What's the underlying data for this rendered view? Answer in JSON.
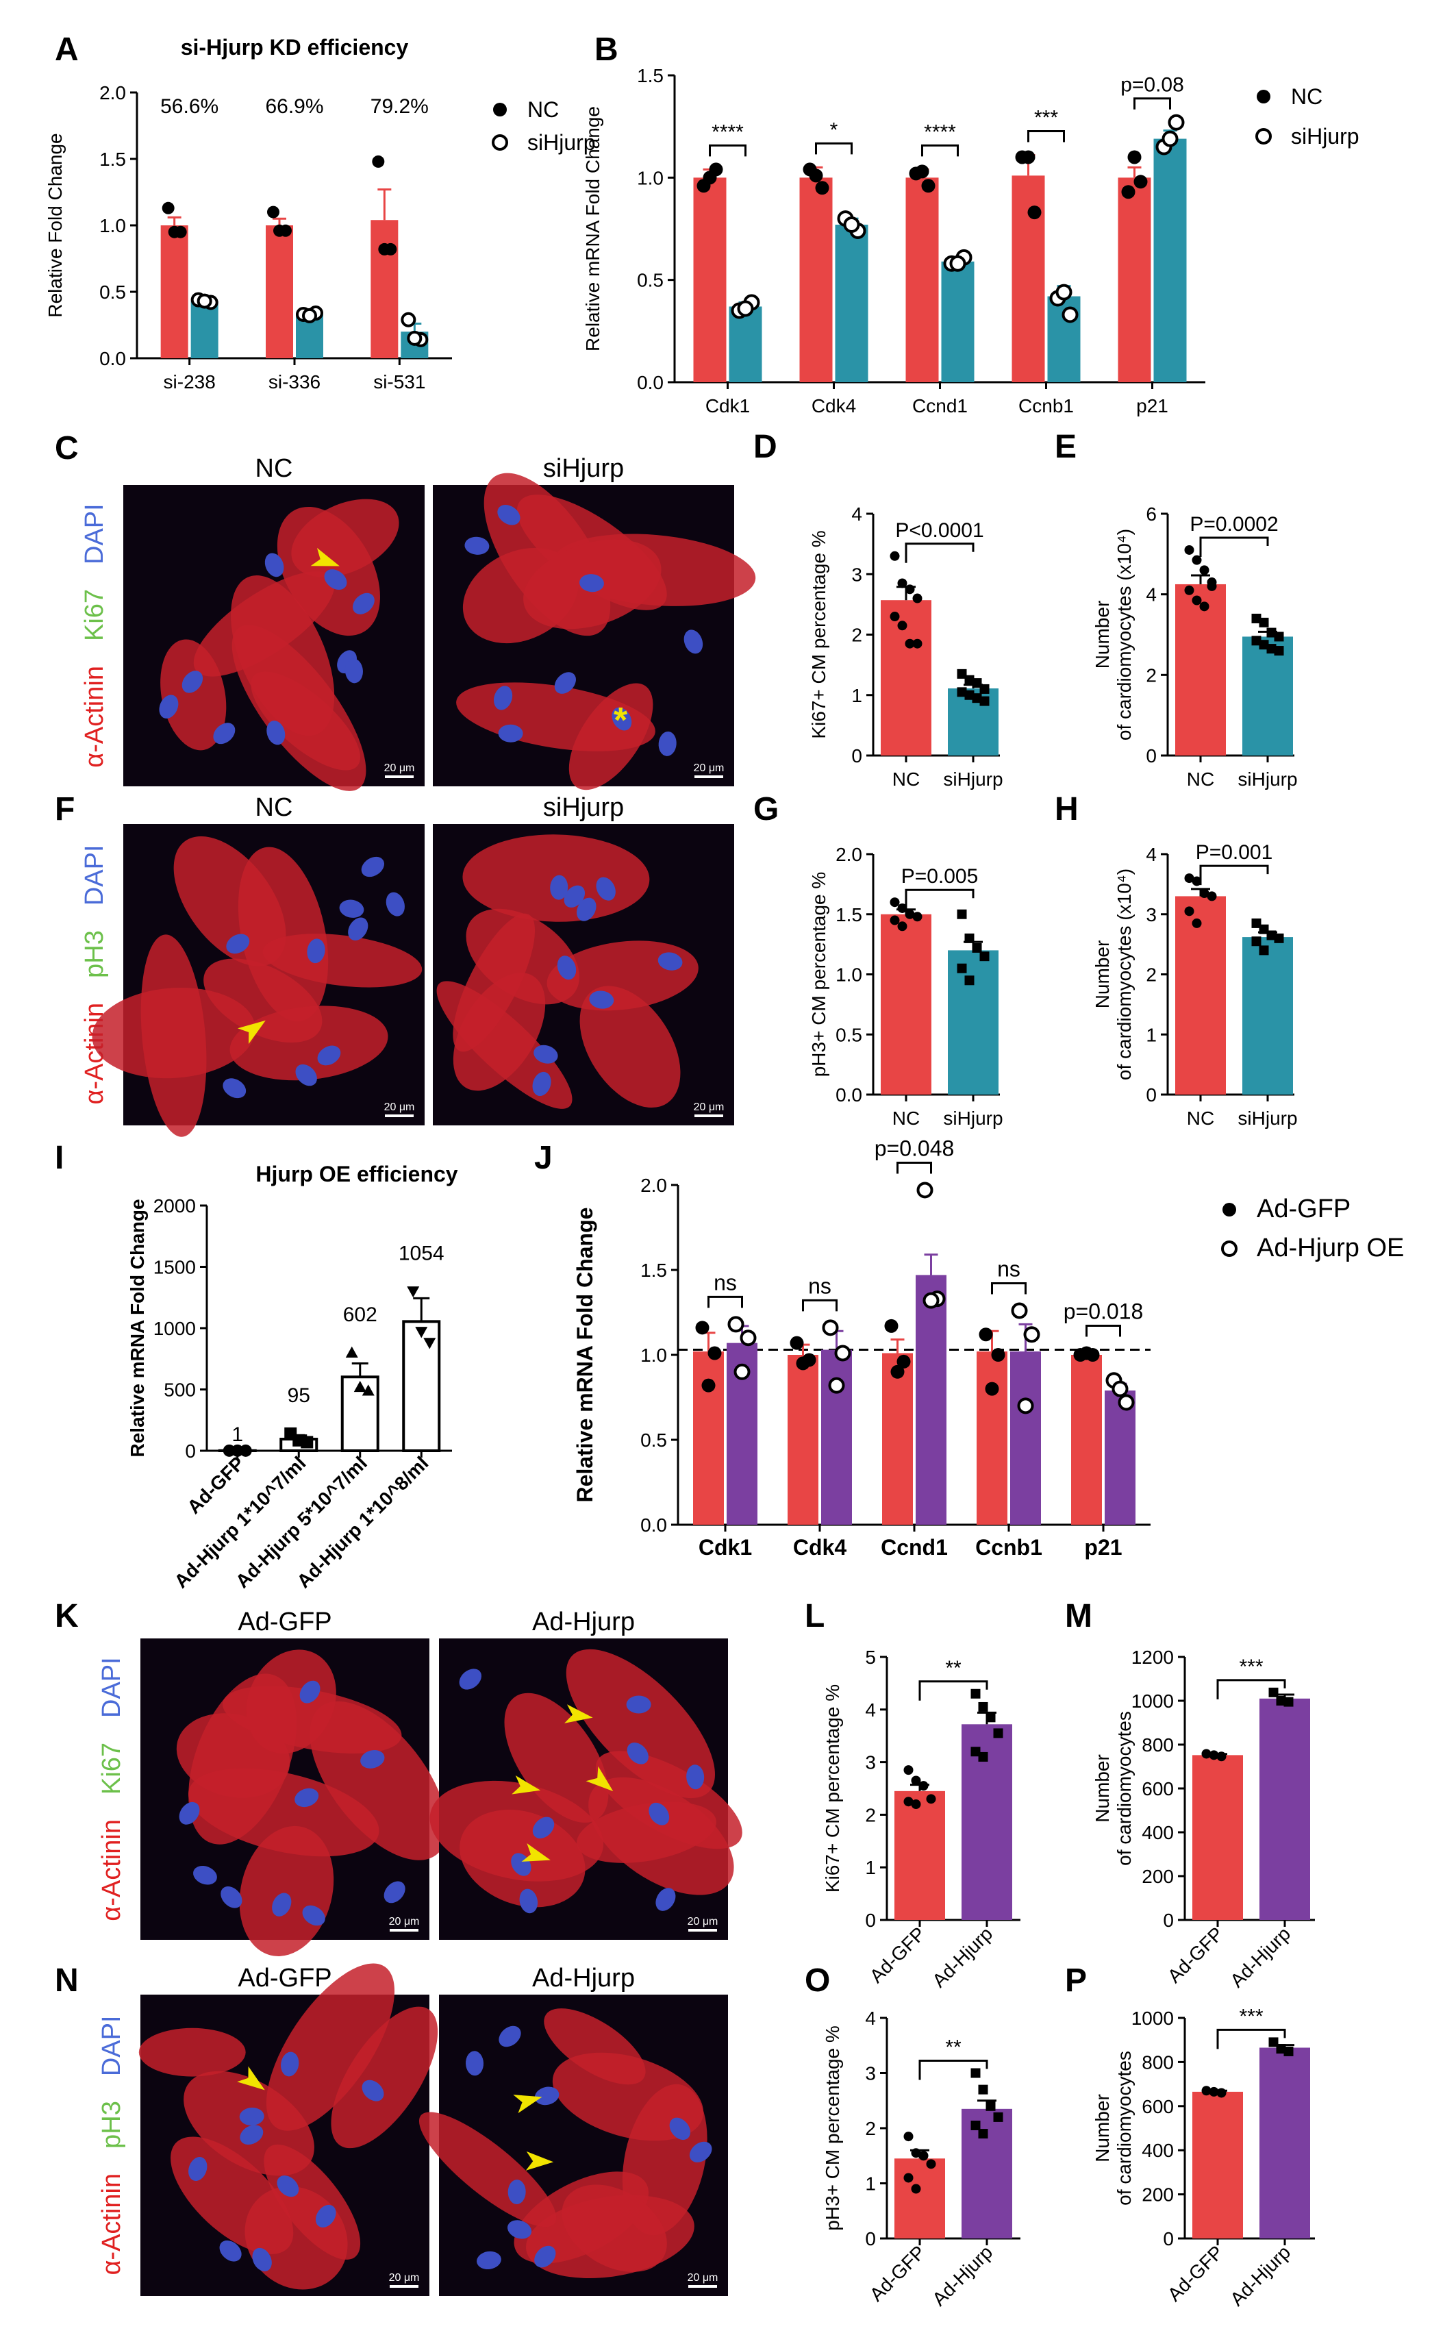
{
  "colors": {
    "red": "#e84545",
    "teal": "#2a93a7",
    "purple": "#7b3fa0",
    "white": "#ffffff",
    "black": "#000000",
    "micro_bg": "#0b0410",
    "micro_cell": "#c4202a",
    "nucleus": "#3d4fc4",
    "arrow": "#f2e400"
  },
  "legends": {
    "top": {
      "items": [
        {
          "marker": "filled-circle",
          "label": "NC"
        },
        {
          "marker": "open-circle",
          "label": "siHjurp"
        }
      ]
    },
    "j": {
      "items": [
        {
          "marker": "filled-circle",
          "label": "Ad-GFP"
        },
        {
          "marker": "open-circle",
          "label": "Ad-Hjurp OE"
        }
      ]
    }
  },
  "micrographs": [
    {
      "panel": "C",
      "channels": [
        "DAPI",
        "Ki67",
        "α-Actinin"
      ],
      "channel_colors": [
        "#4a6bd8",
        "#6cc04a",
        "#e02020"
      ],
      "images": [
        {
          "label": "NC",
          "scalebar": "20 μm",
          "arrows": 1,
          "asterisk": 0
        },
        {
          "label": "siHjurp",
          "scalebar": "20 μm",
          "arrows": 0,
          "asterisk": 1
        }
      ]
    },
    {
      "panel": "F",
      "channels": [
        "DAPI",
        "pH3",
        "α-Actinin"
      ],
      "channel_colors": [
        "#4a6bd8",
        "#6cc04a",
        "#e02020"
      ],
      "images": [
        {
          "label": "NC",
          "scalebar": "20 μm",
          "arrows": 1,
          "asterisk": 0
        },
        {
          "label": "siHjurp",
          "scalebar": "20 μm",
          "arrows": 0,
          "asterisk": 0
        }
      ]
    },
    {
      "panel": "K",
      "channels": [
        "DAPI",
        "Ki67",
        "α-Actinin"
      ],
      "channel_colors": [
        "#4a6bd8",
        "#6cc04a",
        "#e02020"
      ],
      "images": [
        {
          "label": "Ad-GFP",
          "scalebar": "20 μm",
          "arrows": 0,
          "asterisk": 0
        },
        {
          "label": "Ad-Hjurp",
          "scalebar": "20 μm",
          "arrows": 4,
          "asterisk": 0
        }
      ]
    },
    {
      "panel": "N",
      "channels": [
        "DAPI",
        "pH3",
        "α-Actinin"
      ],
      "channel_colors": [
        "#4a6bd8",
        "#6cc04a",
        "#e02020"
      ],
      "images": [
        {
          "label": "Ad-GFP",
          "scalebar": "20 μm",
          "arrows": 1,
          "asterisk": 0
        },
        {
          "label": "Ad-Hjurp",
          "scalebar": "20 μm",
          "arrows": 2,
          "asterisk": 0
        }
      ]
    }
  ],
  "chart_data": [
    {
      "panel": "A",
      "type": "bar",
      "title": "si-Hjurp KD efficiency",
      "ylabel": "Relative Fold Change",
      "ylim": [
        0,
        2.0
      ],
      "yticks": [
        "0.0",
        "0.5",
        "1.0",
        "1.5",
        "2.0"
      ],
      "categories": [
        "si-238",
        "si-336",
        "si-531"
      ],
      "top_labels": [
        "56.6%",
        "66.9%",
        "79.2%"
      ],
      "series": [
        {
          "name": "NC",
          "color": "#e84545",
          "values": [
            1.0,
            1.0,
            1.04
          ],
          "err": [
            0.06,
            0.05,
            0.23
          ],
          "points": [
            [
              1.13,
              0.95,
              0.95
            ],
            [
              1.1,
              0.96,
              0.96
            ],
            [
              1.48,
              0.82,
              0.82
            ]
          ],
          "marker": "filled-circle"
        },
        {
          "name": "siHjurp",
          "color": "#2a93a7",
          "values": [
            0.43,
            0.33,
            0.2
          ],
          "err": [
            0.01,
            0.01,
            0.06
          ],
          "points": [
            [
              0.44,
              0.42,
              0.43
            ],
            [
              0.33,
              0.34,
              0.32
            ],
            [
              0.29,
              0.14,
              0.15
            ]
          ],
          "marker": "open-circle"
        }
      ]
    },
    {
      "panel": "B",
      "type": "bar",
      "ylabel": "Relative mRNA Fold Change",
      "ylim": [
        0,
        1.5
      ],
      "yticks": [
        "0.0",
        "0.5",
        "1.0",
        "1.5"
      ],
      "categories": [
        "Cdk1",
        "Cdk4",
        "Ccnd1",
        "Ccnb1",
        "p21"
      ],
      "significance": [
        "****",
        "*",
        "****",
        "***",
        "p=0.08"
      ],
      "series": [
        {
          "name": "NC",
          "color": "#e84545",
          "values": [
            1.0,
            1.0,
            1.0,
            1.01,
            1.0
          ],
          "err": [
            0.04,
            0.05,
            0.04,
            0.1,
            0.05
          ],
          "points": [
            [
              0.96,
              1.04,
              1.0
            ],
            [
              1.04,
              0.95,
              1.01
            ],
            [
              1.02,
              0.96,
              1.03
            ],
            [
              1.1,
              0.83,
              1.1
            ],
            [
              0.93,
              0.98,
              1.1
            ]
          ],
          "marker": "filled-circle"
        },
        {
          "name": "siHjurp",
          "color": "#2a93a7",
          "values": [
            0.37,
            0.77,
            0.59,
            0.42,
            1.19
          ],
          "err": [
            0.02,
            0.03,
            0.02,
            0.05,
            0.04
          ],
          "points": [
            [
              0.35,
              0.39,
              0.36
            ],
            [
              0.8,
              0.74,
              0.77
            ],
            [
              0.58,
              0.61,
              0.58
            ],
            [
              0.41,
              0.33,
              0.44
            ],
            [
              1.15,
              1.27,
              1.19
            ]
          ],
          "marker": "open-circle"
        }
      ]
    },
    {
      "panel": "D",
      "type": "bar",
      "ylabel": "Ki67+ CM percentage %",
      "ylim": [
        0,
        4
      ],
      "yticks": [
        "0",
        "1",
        "2",
        "3",
        "4"
      ],
      "categories": [
        "NC",
        "siHjurp"
      ],
      "values": [
        2.57,
        1.11
      ],
      "err": [
        0.22,
        0.06
      ],
      "colors": [
        "#e84545",
        "#2a93a7"
      ],
      "points": [
        [
          3.3,
          2.85,
          2.75,
          2.6,
          2.3,
          2.15,
          1.85,
          1.85
        ],
        [
          1.35,
          1.25,
          1.2,
          1.1,
          1.05,
          1.0,
          0.95,
          0.9
        ]
      ],
      "bracket": "P<0.0001"
    },
    {
      "panel": "E",
      "type": "bar",
      "ylabel": "Number\nof cardiomyocytes (x10⁴)",
      "ylim": [
        0,
        6
      ],
      "yticks": [
        "0",
        "2",
        "4",
        "6"
      ],
      "categories": [
        "NC",
        "siHjurp"
      ],
      "values": [
        4.25,
        2.95
      ],
      "err": [
        0.22,
        0.12
      ],
      "colors": [
        "#e84545",
        "#2a93a7"
      ],
      "points": [
        [
          5.1,
          4.85,
          4.6,
          4.3,
          4.1,
          3.85,
          3.7,
          4.2
        ],
        [
          3.4,
          3.3,
          3.05,
          2.95,
          2.85,
          2.75,
          2.65,
          2.6
        ]
      ],
      "bracket": "P=0.0002"
    },
    {
      "panel": "G",
      "type": "bar",
      "ylabel": "pH3+ CM percentage %",
      "ylim": [
        0,
        2.0
      ],
      "yticks": [
        "0.0",
        "0.5",
        "1.0",
        "1.5",
        "2.0"
      ],
      "categories": [
        "NC",
        "siHjurp"
      ],
      "values": [
        1.5,
        1.2
      ],
      "err": [
        0.04,
        0.07
      ],
      "colors": [
        "#e84545",
        "#2a93a7"
      ],
      "points": [
        [
          1.6,
          1.55,
          1.5,
          1.48,
          1.45,
          1.4
        ],
        [
          1.5,
          1.3,
          1.22,
          1.15,
          1.05,
          0.95
        ]
      ],
      "bracket": "P=0.005"
    },
    {
      "panel": "H",
      "type": "bar",
      "ylabel": "Number\nof cardiomyocytes (x10⁴)",
      "ylim": [
        0,
        4
      ],
      "yticks": [
        "0",
        "1",
        "2",
        "3",
        "4"
      ],
      "categories": [
        "NC",
        "siHjurp"
      ],
      "values": [
        3.3,
        2.62
      ],
      "err": [
        0.12,
        0.08
      ],
      "colors": [
        "#e84545",
        "#2a93a7"
      ],
      "points": [
        [
          3.6,
          3.55,
          3.35,
          3.3,
          3.05,
          2.85
        ],
        [
          2.85,
          2.75,
          2.65,
          2.6,
          2.55,
          2.4
        ]
      ],
      "bracket": "P=0.001"
    },
    {
      "panel": "I",
      "type": "bar",
      "title": "Hjurp OE efficiency",
      "ylabel": "Relative mRNA Fold Change",
      "ylim": [
        0,
        2000
      ],
      "yticks": [
        "0",
        "500",
        "1000",
        "1500",
        "2000"
      ],
      "categories": [
        "Ad-GFP",
        "Ad-Hjurp 1*10^7/ml",
        "Ad-Hjurp 5*10^7/ml",
        "Ad-Hjurp 1*10^8/ml"
      ],
      "values": [
        1,
        95,
        602,
        1054
      ],
      "err": [
        0,
        30,
        110,
        190
      ],
      "top_labels": [
        "1",
        "95",
        "602",
        "1054"
      ],
      "markers": [
        "circle",
        "square",
        "triangle-up",
        "triangle-down"
      ],
      "points": [
        [
          1,
          1,
          1
        ],
        [
          140,
          85,
          70
        ],
        [
          800,
          520,
          490
        ],
        [
          1300,
          970,
          880
        ]
      ]
    },
    {
      "panel": "J",
      "type": "bar",
      "ylabel": "Relative mRNA Fold Change",
      "ylim": [
        0,
        2.0
      ],
      "yticks": [
        "0.0",
        "0.5",
        "1.0",
        "1.5",
        "2.0"
      ],
      "categories": [
        "Cdk1",
        "Cdk4",
        "Ccnd1",
        "Ccnb1",
        "p21"
      ],
      "significance": [
        "ns",
        "ns",
        "p=0.048",
        "ns",
        "p=0.018"
      ],
      "reference_line": 1.03,
      "series": [
        {
          "name": "Ad-GFP",
          "color": "#e84545",
          "values": [
            1.02,
            1.0,
            1.01,
            1.02,
            1.0
          ],
          "err": [
            0.11,
            0.06,
            0.08,
            0.12,
            0.01
          ],
          "points": [
            [
              1.16,
              1.01,
              0.82
            ],
            [
              1.07,
              0.97,
              0.95
            ],
            [
              1.17,
              0.96,
              0.9
            ],
            [
              1.12,
              1.0,
              0.8
            ],
            [
              1.0,
              1.0,
              1.01
            ]
          ],
          "marker": "filled-circle"
        },
        {
          "name": "Ad-Hjurp OE",
          "color": "#7b3fa0",
          "values": [
            1.07,
            1.03,
            1.47,
            1.02,
            0.79
          ],
          "err": [
            0.1,
            0.11,
            0.12,
            0.16,
            0.04
          ],
          "points": [
            [
              1.18,
              1.1,
              0.9
            ],
            [
              1.16,
              1.01,
              0.82
            ],
            [
              1.97,
              1.33,
              1.32
            ],
            [
              1.26,
              1.12,
              0.7
            ],
            [
              0.85,
              0.72,
              0.8
            ]
          ],
          "marker": "open-circle"
        }
      ]
    },
    {
      "panel": "L",
      "type": "bar",
      "ylabel": "Ki67+ CM percentage %",
      "ylim": [
        0,
        5
      ],
      "yticks": [
        "0",
        "1",
        "2",
        "3",
        "4",
        "5"
      ],
      "categories": [
        "Ad-GFP",
        "Ad-Hjurp"
      ],
      "values": [
        2.45,
        3.72
      ],
      "err": [
        0.12,
        0.22
      ],
      "colors": [
        "#e84545",
        "#7b3fa0"
      ],
      "points": [
        [
          2.85,
          2.65,
          2.55,
          2.3,
          2.25,
          2.2
        ],
        [
          4.3,
          4.05,
          3.85,
          3.55,
          3.2,
          3.1
        ]
      ],
      "bracket": "**"
    },
    {
      "panel": "M",
      "type": "bar",
      "ylabel": "Number\nof cardiomyocytes",
      "ylim": [
        0,
        1200
      ],
      "yticks": [
        "0",
        "200",
        "400",
        "600",
        "800",
        "1000",
        "1200"
      ],
      "categories": [
        "Ad-GFP",
        "Ad-Hjurp"
      ],
      "values": [
        752,
        1010
      ],
      "err": [
        5,
        18
      ],
      "colors": [
        "#e84545",
        "#7b3fa0"
      ],
      "points": [
        [
          758,
          752,
          746
        ],
        [
          1038,
          1000,
          995
        ]
      ],
      "bracket": "***"
    },
    {
      "panel": "O",
      "type": "bar",
      "ylabel": "pH3+ CM percentage %",
      "ylim": [
        0,
        4
      ],
      "yticks": [
        "0",
        "1",
        "2",
        "3",
        "4"
      ],
      "categories": [
        "Ad-GFP",
        "Ad-Hjurp"
      ],
      "values": [
        1.45,
        2.35
      ],
      "err": [
        0.15,
        0.15
      ],
      "colors": [
        "#e84545",
        "#7b3fa0"
      ],
      "points": [
        [
          1.85,
          1.55,
          1.5,
          1.35,
          1.1,
          0.9
        ],
        [
          3.0,
          2.7,
          2.4,
          2.2,
          2.05,
          1.9
        ]
      ],
      "bracket": "**"
    },
    {
      "panel": "P",
      "type": "bar",
      "ylabel": "Number\nof cardiomyocytes",
      "ylim": [
        0,
        1000
      ],
      "yticks": [
        "0",
        "200",
        "400",
        "600",
        "800",
        "1000"
      ],
      "categories": [
        "Ad-GFP",
        "Ad-Hjurp"
      ],
      "values": [
        665,
        865
      ],
      "err": [
        5,
        12
      ],
      "colors": [
        "#e84545",
        "#7b3fa0"
      ],
      "points": [
        [
          670,
          665,
          660
        ],
        [
          890,
          860,
          848
        ]
      ],
      "bracket": "***"
    }
  ]
}
